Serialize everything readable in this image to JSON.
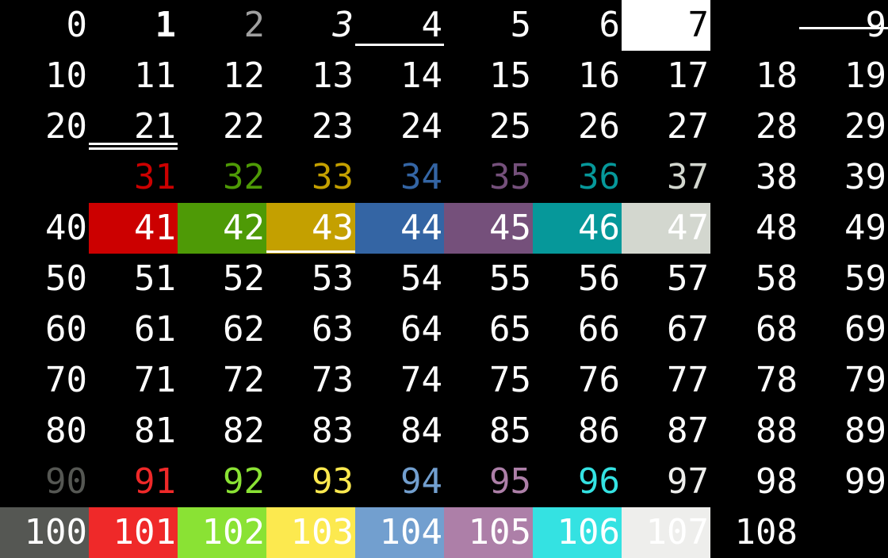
{
  "rows": [
    [
      "0",
      "1",
      "2",
      "3",
      "4",
      "5",
      "6",
      "7",
      null,
      "9"
    ],
    [
      "10",
      "11",
      "12",
      "13",
      "14",
      "15",
      "16",
      "17",
      "18",
      "19"
    ],
    [
      "20",
      "21",
      "22",
      "23",
      "24",
      "25",
      "26",
      "27",
      "28",
      "29"
    ],
    [
      null,
      "31",
      "32",
      "33",
      "34",
      "35",
      "36",
      "37",
      "38",
      "39"
    ],
    [
      "40",
      "41",
      "42",
      "43",
      "44",
      "45",
      "46",
      "47",
      "48",
      "49"
    ],
    [
      "50",
      "51",
      "52",
      "53",
      "54",
      "55",
      "56",
      "57",
      "58",
      "59"
    ],
    [
      "60",
      "61",
      "62",
      "63",
      "64",
      "65",
      "66",
      "67",
      "68",
      "69"
    ],
    [
      "70",
      "71",
      "72",
      "73",
      "74",
      "75",
      "76",
      "77",
      "78",
      "79"
    ],
    [
      "80",
      "81",
      "82",
      "83",
      "84",
      "85",
      "86",
      "87",
      "88",
      "89"
    ],
    [
      "90",
      "91",
      "92",
      "93",
      "94",
      "95",
      "96",
      "97",
      "98",
      "99"
    ],
    [
      "100",
      "101",
      "102",
      "103",
      "104",
      "105",
      "106",
      "107",
      "108",
      null
    ]
  ]
}
